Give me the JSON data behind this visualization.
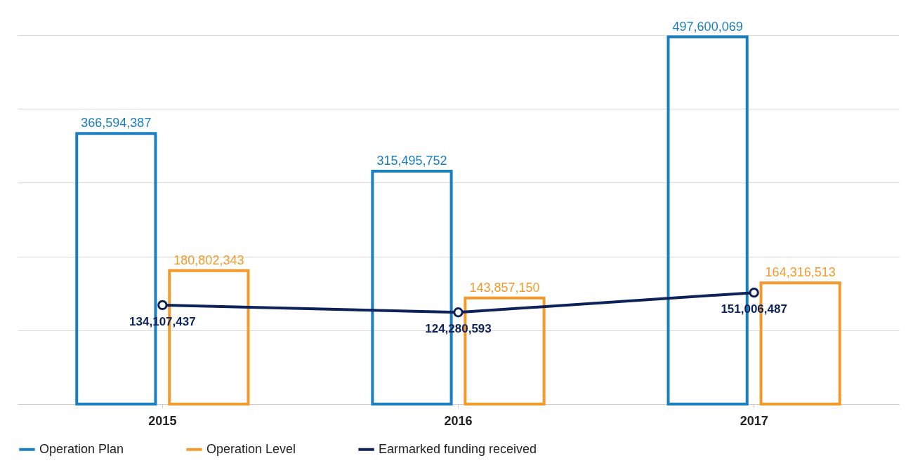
{
  "chart_data": {
    "type": "bar",
    "categories": [
      "2015",
      "2016",
      "2017"
    ],
    "series": [
      {
        "name": "Operation Plan",
        "color": "#1a7fc1",
        "values": [
          366594387,
          315495752,
          497600069
        ],
        "value_labels": [
          "366,594,387",
          "315,495,752",
          "497,600,069"
        ]
      },
      {
        "name": "Operation Level",
        "color": "#f39a2b",
        "values": [
          180802343,
          143857150,
          164316513
        ],
        "value_labels": [
          "180,802,343",
          "143,857,150",
          "164,316,513"
        ]
      },
      {
        "name": "Earmarked funding received",
        "color": "#0d2259",
        "values": [
          134107437,
          124280593,
          151006487
        ],
        "value_labels": [
          "134,107,437",
          "124,280,593",
          "151,006,487"
        ],
        "type": "line",
        "marker": "circle"
      }
    ],
    "ylim": [
      0,
      500000000
    ],
    "yticks": [
      {
        "value": 0,
        "label": null
      },
      {
        "value": 100000000,
        "label": null
      },
      {
        "value": 200000000,
        "label": null
      },
      {
        "value": 300000000,
        "label": null
      },
      {
        "value": 400000000,
        "label": null
      },
      {
        "value": 500000000,
        "label": null
      }
    ],
    "tick_labels": "x",
    "grid": "y",
    "legend": "bottom"
  }
}
